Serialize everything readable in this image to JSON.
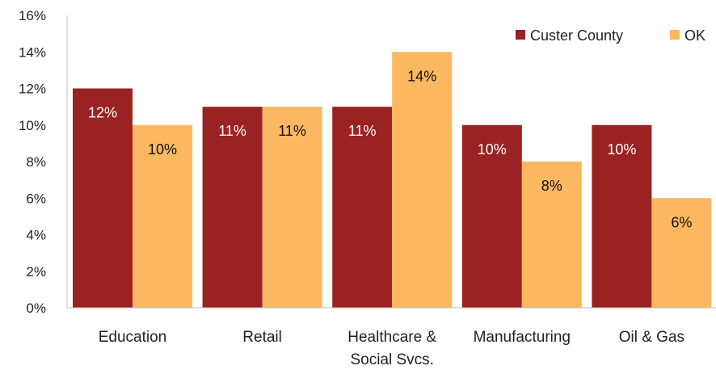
{
  "chart_data": {
    "type": "bar",
    "categories": [
      [
        "Education"
      ],
      [
        "Retail"
      ],
      [
        "Healthcare &",
        "Social Svcs."
      ],
      [
        "Manufacturing"
      ],
      [
        "Oil & Gas"
      ]
    ],
    "series": [
      {
        "name": "Custer County",
        "color": "#9b2222",
        "label_color": "#ffffff",
        "values": [
          12,
          11,
          11,
          10,
          10
        ],
        "labels": [
          "12%",
          "11%",
          "11%",
          "10%",
          "10%"
        ]
      },
      {
        "name": "OK",
        "color": "#fbb860",
        "label_color": "#111111",
        "values": [
          10,
          11,
          14,
          8,
          6
        ],
        "labels": [
          "10%",
          "11%",
          "14%",
          "8%",
          "6%"
        ]
      }
    ],
    "ylim": [
      0,
      16
    ],
    "yticks": [
      "0%",
      "2%",
      "4%",
      "6%",
      "8%",
      "10%",
      "12%",
      "14%",
      "16%"
    ],
    "title": "",
    "xlabel": "",
    "ylabel": "",
    "grid": false,
    "legend_position": "top-right"
  }
}
